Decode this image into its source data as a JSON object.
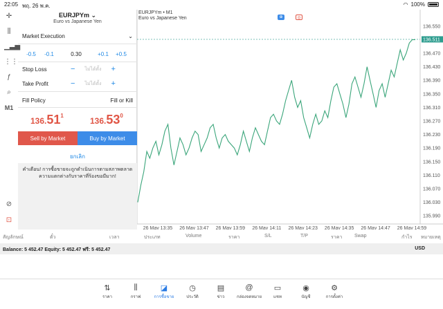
{
  "status": {
    "time": "22:05",
    "date": "พฤ. 26 พ.ค.",
    "battery": "100%"
  },
  "rail": {
    "timeframe": "M1"
  },
  "order": {
    "symbol": "EURJPYm",
    "symbol_desc": "Euro vs Japanese Yen",
    "execution": "Market Execution",
    "volume_steps": [
      "-0.5",
      "-0.1",
      "0.30",
      "+0.1",
      "+0.5"
    ],
    "stop_loss_label": "Stop Loss",
    "take_profit_label": "Take Profit",
    "not_set": "ไม่ได้ตั้ง",
    "fill_policy_label": "Fill Policy",
    "fill_policy_value": "Fill or Kill",
    "bid": {
      "prefix": "136.",
      "big": "51",
      "sup": "1"
    },
    "ask": {
      "prefix": "136.",
      "big": "53",
      "sup": "0"
    },
    "sell_label": "Sell by Market",
    "buy_label": "Buy by Market",
    "cancel_label": "ยกเลิก",
    "warning": "คำเตือน! การซื้อขายจะถูกดำเนินการตามสภาพตลาด ความแตกต่างกับราคาที่ร้องขอมีมาก!"
  },
  "chart": {
    "title": "EURJPYm • M1",
    "desc": "Euro vs Japanese Yen",
    "current_price": "136.511"
  },
  "chart_data": {
    "type": "line",
    "y_ticks": [
      "136.550",
      "136.510",
      "136.470",
      "136.430",
      "136.390",
      "136.350",
      "136.310",
      "136.270",
      "136.230",
      "136.190",
      "136.150",
      "136.110",
      "136.070",
      "136.030",
      "135.990"
    ],
    "ylim": [
      135.97,
      136.57
    ],
    "x_ticks": [
      "26 May 13:35",
      "26 May 13:47",
      "26 May 13:59",
      "26 May 14:11",
      "26 May 14:23",
      "26 May 14:35",
      "26 May 14:47",
      "26 May 14:59"
    ],
    "values": [
      136.03,
      136.08,
      136.12,
      136.18,
      136.16,
      136.19,
      136.21,
      136.17,
      136.2,
      136.24,
      136.26,
      136.19,
      136.14,
      136.18,
      136.22,
      136.2,
      136.17,
      136.19,
      136.22,
      136.24,
      136.23,
      136.18,
      136.2,
      136.22,
      136.25,
      136.26,
      136.22,
      136.19,
      136.22,
      136.23,
      136.21,
      136.2,
      136.19,
      136.17,
      136.2,
      136.24,
      136.21,
      136.18,
      136.22,
      136.25,
      136.23,
      136.21,
      136.2,
      136.24,
      136.28,
      136.29,
      136.27,
      136.26,
      136.29,
      136.33,
      136.36,
      136.39,
      136.34,
      136.31,
      136.33,
      136.28,
      136.25,
      136.22,
      136.26,
      136.29,
      136.26,
      136.27,
      136.3,
      136.28,
      136.33,
      136.37,
      136.38,
      136.35,
      136.32,
      136.28,
      136.32,
      136.38,
      136.4,
      136.37,
      136.34,
      136.38,
      136.43,
      136.39,
      136.35,
      136.31,
      136.36,
      136.38,
      136.34,
      136.38,
      136.42,
      136.4,
      136.44,
      136.48,
      136.45,
      136.47,
      136.5,
      136.51,
      136.51
    ],
    "current": 136.511
  },
  "columns": [
    "สัญลักษณ์",
    "ตั๋ว",
    "เวลา",
    "ประเภท",
    "Volume",
    "ราคา",
    "S/L",
    "T/P",
    "ราคา",
    "Swap",
    "กำไร",
    "หมายเหตุ"
  ],
  "balance": {
    "text": "Balance: 5 452.47 Equity: 5 452.47 ฟรี: 5 452.47",
    "currency": "USD"
  },
  "tabs": [
    {
      "label": "ราคา",
      "icon": "quotes-icon"
    },
    {
      "label": "กราฟ",
      "icon": "chart-icon"
    },
    {
      "label": "การซื้อขาย",
      "icon": "trade-icon"
    },
    {
      "label": "ประวัติ",
      "icon": "history-icon"
    },
    {
      "label": "ข่าว",
      "icon": "news-icon"
    },
    {
      "label": "กล่องจดหมาย",
      "icon": "mail-icon"
    },
    {
      "label": "แชท",
      "icon": "chat-icon"
    },
    {
      "label": "บัญชี",
      "icon": "account-icon"
    },
    {
      "label": "การตั้งค่า",
      "icon": "settings-icon"
    }
  ]
}
